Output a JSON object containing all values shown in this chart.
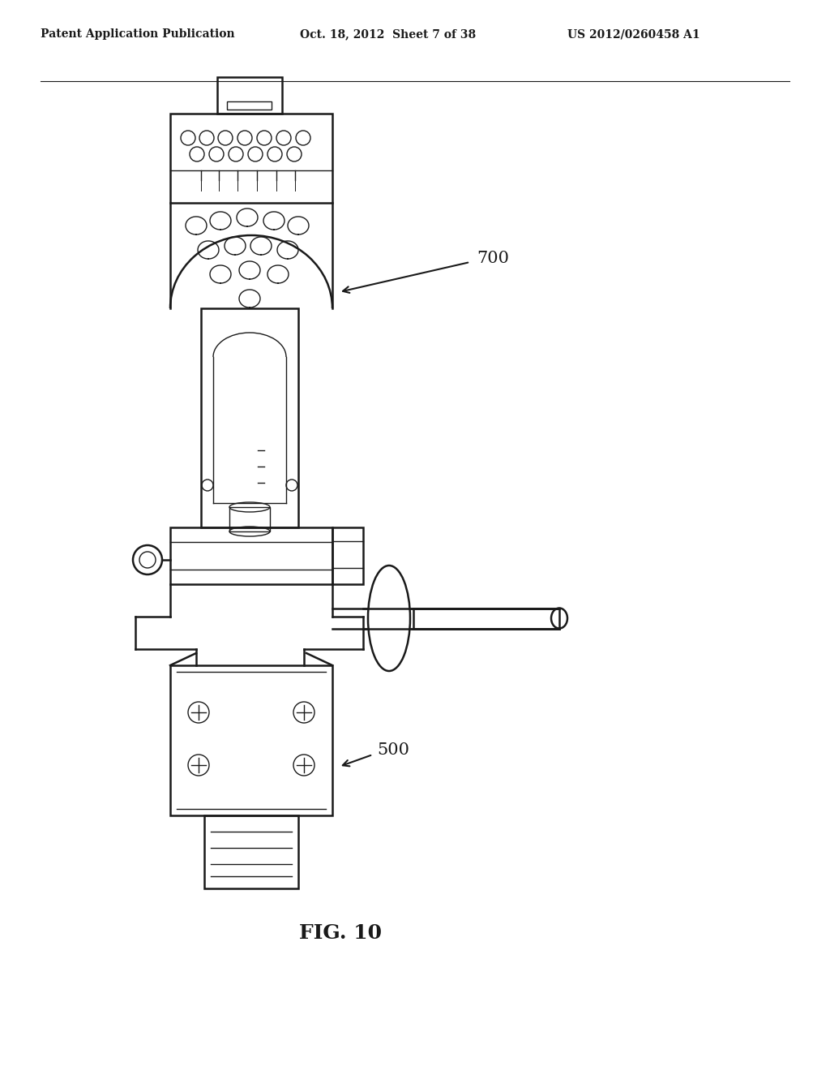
{
  "bg_color": "#ffffff",
  "line_color": "#1a1a1a",
  "header_left": "Patent Application Publication",
  "header_center": "Oct. 18, 2012  Sheet 7 of 38",
  "header_right": "US 2012/0260458 A1",
  "figure_label": "FIG. 10",
  "label_700": "700",
  "label_500": "500"
}
